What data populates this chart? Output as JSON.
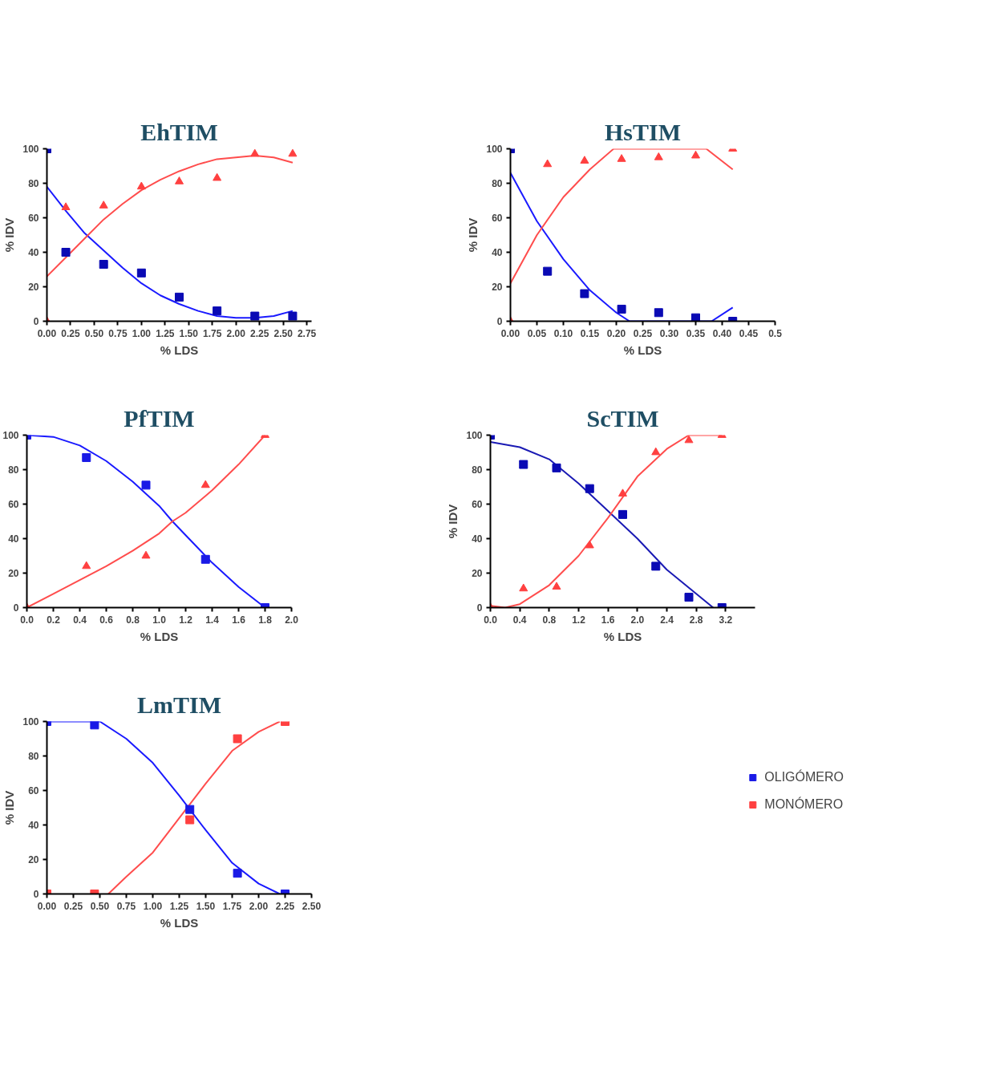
{
  "chart_data": [
    {
      "type": "scatter",
      "title": "EhTIM",
      "xlabel": "% LDS",
      "ylabel": "% IDV",
      "xlim": [
        0,
        2.8
      ],
      "ylim": [
        0,
        100
      ],
      "xticks": [
        {
          "value": 0,
          "label": "0.00"
        },
        0.25,
        {
          "value": 0.5,
          "label": "0.50"
        },
        0.75,
        {
          "value": 1,
          "label": "1.00"
        },
        1.25,
        {
          "value": 1.5,
          "label": "1.50"
        },
        1.75,
        {
          "value": 2,
          "label": "2.00"
        },
        2.25,
        {
          "value": 2.5,
          "label": "2.50"
        },
        2.75
      ],
      "yticks": [
        0,
        20,
        40,
        60,
        80,
        100
      ],
      "grid": false,
      "legend": false,
      "series": [
        {
          "type": "line",
          "color": "#1a1aff",
          "x": [
            0,
            0.2,
            0.4,
            0.6,
            0.8,
            1.0,
            1.2,
            1.4,
            1.6,
            1.8,
            2.0,
            2.2,
            2.4,
            2.6
          ],
          "values": [
            78,
            64,
            51,
            41,
            31,
            22,
            15,
            10,
            6,
            3,
            2,
            2,
            3,
            6
          ]
        },
        {
          "type": "line",
          "color": "#ff4d4d",
          "x": [
            0,
            0.2,
            0.4,
            0.6,
            0.8,
            1.0,
            1.2,
            1.4,
            1.6,
            1.8,
            2.0,
            2.2,
            2.4,
            2.6
          ],
          "values": [
            26,
            37,
            48,
            59,
            68,
            76,
            82,
            87,
            91,
            94,
            95,
            96,
            95,
            92
          ]
        },
        {
          "marker": "square",
          "color": "#0a0ab4",
          "x": [
            0,
            0.2,
            0.6,
            1.0,
            1.4,
            1.8,
            2.2,
            2.6
          ],
          "values": [
            100,
            40,
            33,
            28,
            14,
            6,
            3,
            3
          ]
        },
        {
          "marker": "triangle",
          "color": "#ff4040",
          "x": [
            0,
            0.2,
            0.6,
            1.0,
            1.4,
            1.8,
            2.2,
            2.6
          ],
          "values": [
            0,
            66,
            67,
            78,
            81,
            83,
            97,
            97
          ]
        }
      ]
    },
    {
      "type": "scatter",
      "title": "HsTIM",
      "xlabel": "% LDS",
      "ylabel": "% IDV",
      "xlim": [
        0,
        0.5
      ],
      "ylim": [
        0,
        100
      ],
      "xticks": [
        {
          "value": 0,
          "label": "0.00"
        },
        0.05,
        {
          "value": 0.1,
          "label": "0.10"
        },
        0.15,
        {
          "value": 0.2,
          "label": "0.20"
        },
        0.25,
        {
          "value": 0.3,
          "label": "0.30"
        },
        0.35,
        {
          "value": 0.4,
          "label": "0.40"
        },
        0.45,
        0.5
      ],
      "yticks": [
        0,
        20,
        40,
        60,
        80,
        100
      ],
      "grid": false,
      "legend": false,
      "series": [
        {
          "type": "line",
          "color": "#1a1aff",
          "x": [
            0,
            0.05,
            0.1,
            0.15,
            0.2,
            0.225,
            0.38,
            0.42
          ],
          "values": [
            86,
            58,
            36,
            18,
            5,
            0,
            0,
            8
          ]
        },
        {
          "type": "line",
          "color": "#ff4d4d",
          "x": [
            0,
            0.05,
            0.1,
            0.15,
            0.195,
            0.37,
            0.42
          ],
          "values": [
            22,
            50,
            72,
            88,
            100,
            100,
            88
          ]
        },
        {
          "marker": "square",
          "color": "#0a0ab4",
          "x": [
            0,
            0.07,
            0.14,
            0.21,
            0.28,
            0.35,
            0.42
          ],
          "values": [
            100,
            29,
            16,
            7,
            5,
            2,
            0
          ]
        },
        {
          "marker": "triangle",
          "color": "#ff4040",
          "x": [
            0,
            0.07,
            0.14,
            0.21,
            0.28,
            0.35,
            0.42
          ],
          "values": [
            0,
            91,
            93,
            94,
            95,
            96,
            100
          ]
        }
      ]
    },
    {
      "type": "scatter",
      "title": "PfTIM",
      "xlabel": "% LDS",
      "xlim": [
        0,
        2.0
      ],
      "ylim": [
        0,
        100
      ],
      "xticks": [
        {
          "value": 0,
          "label": "0.0"
        },
        0.2,
        0.4,
        0.6,
        0.8,
        {
          "value": 1,
          "label": "1.0"
        },
        1.2,
        1.4,
        1.6,
        1.8,
        {
          "value": 2,
          "label": "2.0"
        }
      ],
      "yticks": [
        0,
        20,
        40,
        60,
        80,
        100
      ],
      "grid": false,
      "legend": false,
      "series": [
        {
          "type": "line",
          "color": "#1a1aff",
          "x": [
            0,
            0.2,
            0.4,
            0.6,
            0.8,
            1.0,
            1.1,
            1.2,
            1.4,
            1.6,
            1.8
          ],
          "values": [
            100,
            99,
            94,
            85,
            73,
            59,
            50,
            42,
            26,
            12,
            0
          ]
        },
        {
          "type": "line",
          "color": "#ff4d4d",
          "x": [
            0,
            0.2,
            0.4,
            0.6,
            0.8,
            1.0,
            1.1,
            1.2,
            1.4,
            1.6,
            1.8
          ],
          "values": [
            0,
            8,
            16,
            24,
            33,
            43,
            50,
            55,
            68,
            83,
            100
          ]
        },
        {
          "marker": "square",
          "color": "#1a1ae6",
          "x": [
            0,
            0.45,
            0.9,
            1.35,
            1.8
          ],
          "values": [
            100,
            87,
            71,
            28,
            0
          ]
        },
        {
          "marker": "triangle",
          "color": "#ff4040",
          "x": [
            0,
            0.45,
            0.9,
            1.35,
            1.8
          ],
          "values": [
            0,
            24,
            30,
            71,
            100
          ]
        }
      ]
    },
    {
      "type": "scatter",
      "title": "ScTIM",
      "xlabel": "% LDS",
      "ylabel": "% IDV",
      "xlim": [
        0,
        3.6
      ],
      "ylim": [
        0,
        100
      ],
      "xticks": [
        {
          "value": 0,
          "label": "0.0"
        },
        0.4,
        0.8,
        1.2,
        1.6,
        {
          "value": 2,
          "label": "2.0"
        },
        2.4,
        2.8,
        3.2
      ],
      "yticks": [
        0,
        20,
        40,
        60,
        80,
        100
      ],
      "grid": false,
      "legend": false,
      "series": [
        {
          "type": "line",
          "color": "#1a1ab4",
          "x": [
            0,
            0.4,
            0.8,
            1.2,
            1.6,
            2.0,
            2.4,
            2.8,
            3.03
          ],
          "values": [
            96,
            93,
            86,
            72,
            56,
            40,
            22,
            8,
            0
          ]
        },
        {
          "type": "line",
          "color": "#ff4d4d",
          "x": [
            0,
            0.2,
            0.4,
            0.8,
            1.2,
            1.6,
            2.0,
            2.4,
            2.7,
            3.15
          ],
          "values": [
            1,
            0,
            2,
            13,
            30,
            52,
            76,
            92,
            100,
            100
          ]
        },
        {
          "marker": "square",
          "color": "#0a0ab4",
          "x": [
            0,
            0.45,
            0.9,
            1.35,
            1.8,
            2.25,
            2.7,
            3.15
          ],
          "values": [
            100,
            83,
            81,
            69,
            54,
            24,
            6,
            0
          ]
        },
        {
          "marker": "triangle",
          "color": "#ff4040",
          "x": [
            0,
            0.45,
            0.9,
            1.35,
            1.8,
            2.25,
            2.7,
            3.15
          ],
          "values": [
            0,
            11,
            12,
            36,
            66,
            90,
            97,
            100
          ]
        }
      ]
    },
    {
      "type": "scatter",
      "title": "LmTIM",
      "xlabel": "% LDS",
      "ylabel": "% IDV",
      "xlim": [
        0,
        2.5
      ],
      "ylim": [
        0,
        100
      ],
      "xticks": [
        {
          "value": 0,
          "label": "0.00"
        },
        0.25,
        {
          "value": 0.5,
          "label": "0.50"
        },
        0.75,
        {
          "value": 1,
          "label": "1.00"
        },
        1.25,
        {
          "value": 1.5,
          "label": "1.50"
        },
        1.75,
        {
          "value": 2,
          "label": "2.00"
        },
        2.25,
        {
          "value": 2.5,
          "label": "2.50"
        }
      ],
      "yticks": [
        0,
        20,
        40,
        60,
        80,
        100
      ],
      "grid": false,
      "legend": "right",
      "series": [
        {
          "type": "line",
          "color": "#1a1aff",
          "x": [
            0,
            0.5,
            0.75,
            1.0,
            1.25,
            1.5,
            1.75,
            2.0,
            2.2
          ],
          "values": [
            100,
            100,
            90,
            76,
            57,
            37,
            18,
            6,
            0
          ]
        },
        {
          "type": "line",
          "color": "#ff4d4d",
          "x": [
            0.58,
            0.75,
            1.0,
            1.25,
            1.5,
            1.75,
            2.0,
            2.2
          ],
          "values": [
            0,
            10,
            24,
            44,
            64,
            83,
            94,
            100
          ]
        },
        {
          "name": "OLIGÓMERO",
          "marker": "square",
          "color": "#1a1ae6",
          "x": [
            0,
            0.45,
            1.35,
            1.8,
            2.25
          ],
          "values": [
            100,
            98,
            49,
            12,
            0
          ]
        },
        {
          "name": "MONÓMERO",
          "marker": "square",
          "color": "#ff4040",
          "x": [
            0,
            0.45,
            1.35,
            1.8,
            2.25
          ],
          "values": [
            0,
            0,
            43,
            90,
            100
          ]
        }
      ]
    }
  ]
}
